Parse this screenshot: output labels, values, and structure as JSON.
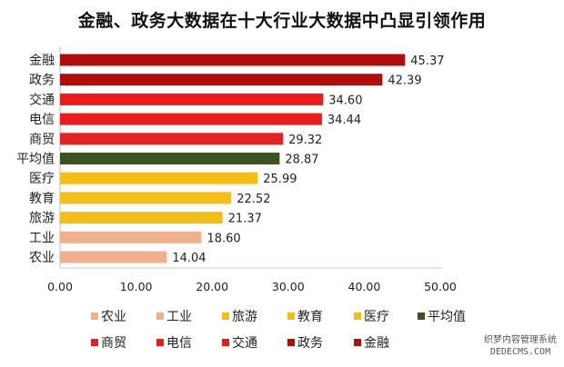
{
  "chart_data": {
    "type": "bar",
    "orientation": "horizontal",
    "title": "金融、政务大数据在十大行业大数据中凸显引领作用",
    "categories": [
      "金融",
      "政务",
      "交通",
      "电信",
      "商贸",
      "平均值",
      "医疗",
      "教育",
      "旅游",
      "工业",
      "农业"
    ],
    "values": [
      45.37,
      42.39,
      34.6,
      34.44,
      29.32,
      28.87,
      25.99,
      22.52,
      21.37,
      18.6,
      14.04
    ],
    "value_labels": [
      "45.37",
      "42.39",
      "34.60",
      "34.44",
      "29.32",
      "28.87",
      "25.99",
      "22.52",
      "21.37",
      "18.60",
      "14.04"
    ],
    "colors": [
      "#b00d0d",
      "#b00d0d",
      "#ec1c1c",
      "#ec1c1c",
      "#e32222",
      "#3b5320",
      "#f4be17",
      "#f4be17",
      "#f4be17",
      "#f1b08c",
      "#f1b08c"
    ],
    "xlim": [
      0,
      50
    ],
    "x_ticks": [
      "0.00",
      "10.00",
      "20.00",
      "30.00",
      "40.00",
      "50.00"
    ],
    "xlabel": "",
    "ylabel": "",
    "grid": false,
    "legend_position": "bottom",
    "legend": [
      {
        "label": "农业",
        "color": "#f1b08c"
      },
      {
        "label": "工业",
        "color": "#f1b08c"
      },
      {
        "label": "旅游",
        "color": "#f4be17"
      },
      {
        "label": "教育",
        "color": "#f4be17"
      },
      {
        "label": "医疗",
        "color": "#f4be17"
      },
      {
        "label": "平均值",
        "color": "#3b5320"
      },
      {
        "label": "商贸",
        "color": "#e32222"
      },
      {
        "label": "电信",
        "color": "#ec1c1c"
      },
      {
        "label": "交通",
        "color": "#ec1c1c"
      },
      {
        "label": "政务",
        "color": "#b00d0d"
      },
      {
        "label": "金融",
        "color": "#b00d0d"
      }
    ]
  },
  "watermark": {
    "line1": "织梦内容管理系统",
    "line2": "DEDECMS.COM"
  }
}
